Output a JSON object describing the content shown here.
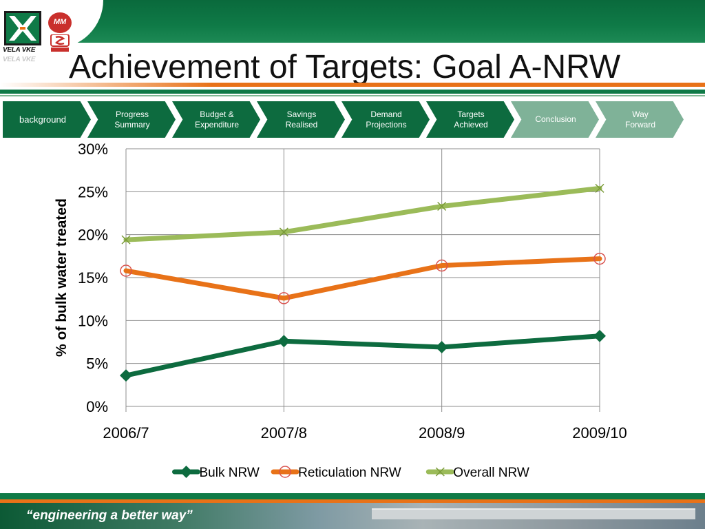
{
  "header": {
    "title": "Achievement of Targets: Goal A-NRW",
    "logo_text": "VELA VKE",
    "mm_text": "MM",
    "tagline": "“engineering a better way”"
  },
  "nav": [
    {
      "label": "background",
      "state": "dark"
    },
    {
      "label": "Progress\nSummary",
      "state": "dark"
    },
    {
      "label": "Budget &\nExpenditure",
      "state": "dark"
    },
    {
      "label": "Savings\nRealised",
      "state": "dark"
    },
    {
      "label": "Demand\nProjections",
      "state": "dark"
    },
    {
      "label": "Targets\nAchieved",
      "state": "dark"
    },
    {
      "label": "Conclusion",
      "state": "light"
    },
    {
      "label": "Way\nForward",
      "state": "light"
    }
  ],
  "colors": {
    "brand_green": "#0f7a47",
    "brand_orange": "#e87218",
    "nav_dark": "#0d6b3f",
    "nav_light": "#7fb298"
  },
  "chart_data": {
    "type": "line",
    "categories": [
      "2006/7",
      "2007/8",
      "2008/9",
      "2009/10"
    ],
    "ylabel": "% of bulk water treated",
    "ylim": [
      0,
      30
    ],
    "y_ticks": [
      "0%",
      "5%",
      "10%",
      "15%",
      "20%",
      "25%",
      "30%"
    ],
    "y_tick_values": [
      0,
      5,
      10,
      15,
      20,
      25,
      30
    ],
    "grid": true,
    "legend_position": "bottom",
    "series": [
      {
        "name": "Bulk NRW",
        "color": "#0d6b3f",
        "marker": "diamond",
        "values": [
          3.6,
          7.6,
          6.9,
          8.2
        ]
      },
      {
        "name": "Reticulation NRW",
        "color": "#e87218",
        "marker": "circle",
        "values": [
          15.8,
          12.6,
          16.4,
          17.2
        ]
      },
      {
        "name": "Overall NRW",
        "color": "#9bbb59",
        "marker": "x",
        "values": [
          19.4,
          20.3,
          23.3,
          25.4
        ]
      }
    ]
  }
}
